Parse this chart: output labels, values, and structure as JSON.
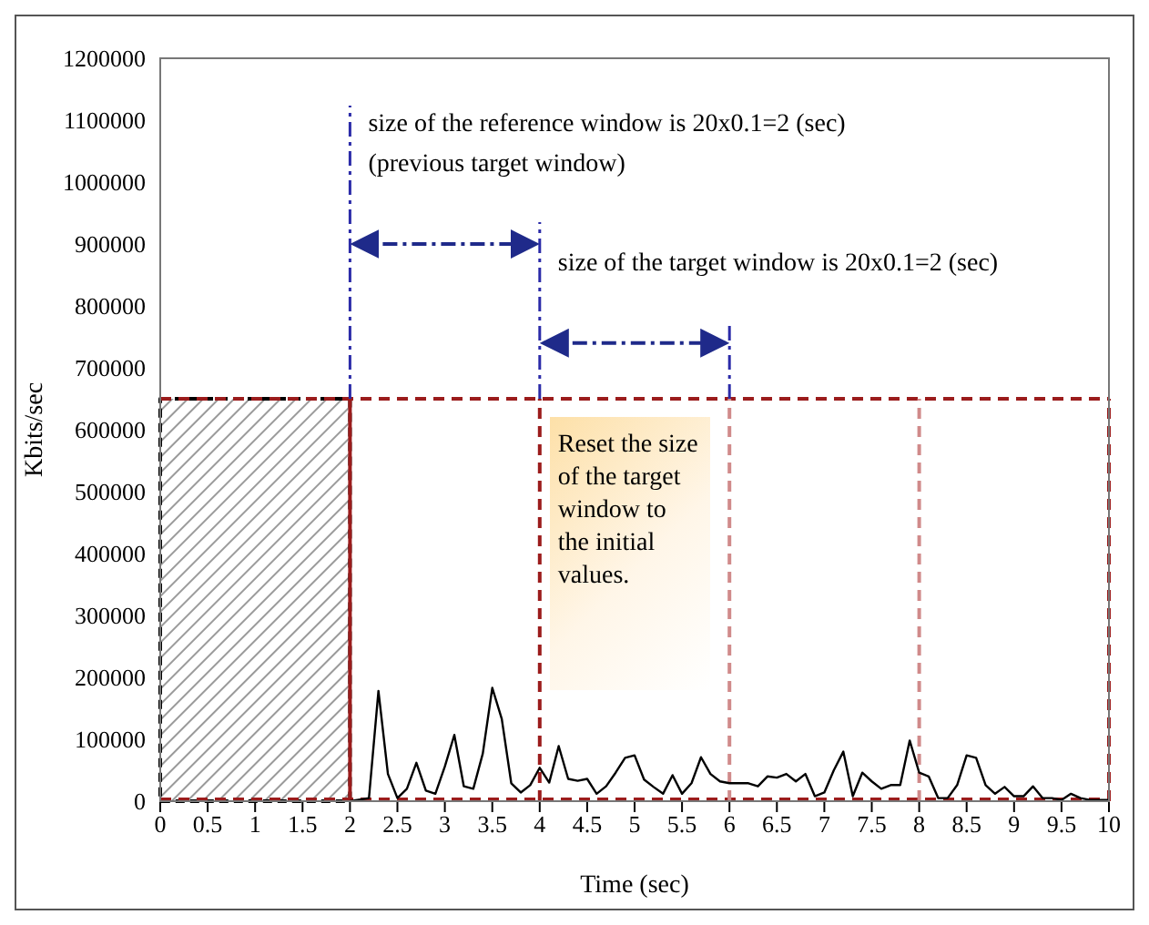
{
  "chart_data": {
    "type": "line",
    "xlabel": "Time (sec)",
    "ylabel": "Kbits/sec",
    "x": [
      2,
      2.2,
      2.3,
      2.4,
      2.5,
      2.6,
      2.7,
      2.8,
      2.9,
      3,
      3.1,
      3.2,
      3.3,
      3.4,
      3.5,
      3.6,
      3.7,
      3.8,
      3.9,
      4,
      4.1,
      4.2,
      4.3,
      4.4,
      4.5,
      4.6,
      4.7,
      4.8,
      4.9,
      5,
      5.1,
      5.2,
      5.3,
      5.4,
      5.5,
      5.6,
      5.7,
      5.8,
      5.9,
      6,
      6.1,
      6.2,
      6.3,
      6.4,
      6.5,
      6.6,
      6.7,
      6.8,
      6.9,
      7,
      7.1,
      7.2,
      7.3,
      7.4,
      7.5,
      7.6,
      7.7,
      7.8,
      7.9,
      8,
      8.1,
      8.2,
      8.3,
      8.4,
      8.5,
      8.6,
      8.7,
      8.8,
      8.9,
      9,
      9.1,
      9.2,
      9.3,
      9.4,
      9.5,
      9.6,
      9.7,
      9.8,
      9.9,
      10
    ],
    "series": [
      {
        "color": "#000000",
        "values": [
          0,
          5000,
          178000,
          44000,
          5000,
          20000,
          62000,
          17000,
          12000,
          56000,
          107000,
          24000,
          20000,
          77000,
          183000,
          133000,
          29000,
          14000,
          26000,
          54000,
          30000,
          89000,
          36000,
          33000,
          36000,
          12000,
          24000,
          46000,
          70000,
          74000,
          35000,
          23000,
          12000,
          42000,
          12000,
          29000,
          71000,
          44000,
          32000,
          29000,
          29000,
          29000,
          24000,
          40000,
          38000,
          44000,
          32000,
          44000,
          8000,
          14000,
          50000,
          80000,
          8000,
          46000,
          32000,
          20000,
          26000,
          26000,
          98000,
          46000,
          40000,
          5000,
          5000,
          26000,
          74000,
          70000,
          26000,
          12000,
          23000,
          8000,
          8000,
          24000,
          5000,
          5000,
          2000,
          12000,
          5000,
          2000,
          2000,
          2000
        ]
      }
    ],
    "xlim": [
      0,
      10
    ],
    "xticks": [
      0,
      0.5,
      1,
      1.5,
      2,
      2.5,
      3,
      3.5,
      4,
      4.5,
      5,
      5.5,
      6,
      6.5,
      7,
      7.5,
      8,
      8.5,
      9,
      9.5,
      10
    ],
    "ylim": [
      0,
      1200000
    ],
    "yticks": [
      0,
      100000,
      200000,
      300000,
      400000,
      500000,
      600000,
      700000,
      800000,
      900000,
      1000000,
      1100000,
      1200000
    ],
    "marker": "none",
    "line_style": "solid",
    "bands": [
      {
        "axis": "x",
        "from": 0,
        "to": 2,
        "color": "#000000"
      }
    ],
    "ref_lines": [
      {
        "axis": "y",
        "value": 650000,
        "color": "#9b1c1c",
        "line_style": "dashed"
      },
      {
        "axis": "y",
        "value": 3000,
        "color": "#9b1c1c",
        "line_style": "dashed"
      },
      {
        "axis": "x",
        "value": 2,
        "color": "#9b1c1c",
        "line_style": "solid"
      },
      {
        "axis": "x",
        "value": 4,
        "color": "#9b1c1c",
        "line_style": "dashed"
      },
      {
        "axis": "x",
        "value": 6,
        "color": "#d08a8a",
        "line_style": "dashed"
      },
      {
        "axis": "x",
        "value": 8,
        "color": "#d08a8a",
        "line_style": "dashed"
      },
      {
        "axis": "x",
        "value": 10,
        "color": "#9b1c1c",
        "line_style": "dashed"
      },
      {
        "axis": "x",
        "value": 2,
        "color": "#2b2ba8",
        "line_style": "dotted"
      },
      {
        "axis": "x",
        "value": 4,
        "color": "#2b2ba8",
        "line_style": "dotted"
      },
      {
        "axis": "x",
        "value": 6,
        "color": "#2b2ba8",
        "line_style": "dotted"
      }
    ],
    "annotations": [
      {
        "text": "size of the reference window is 20x0.1=2 (sec)\n(previous target window)",
        "x": 2,
        "y": 900000
      },
      {
        "text": "size of the target window is 20x0.1=2 (sec)",
        "x": 4,
        "y": 740000
      },
      "Reset the size of the target window to the initial values."
    ]
  }
}
